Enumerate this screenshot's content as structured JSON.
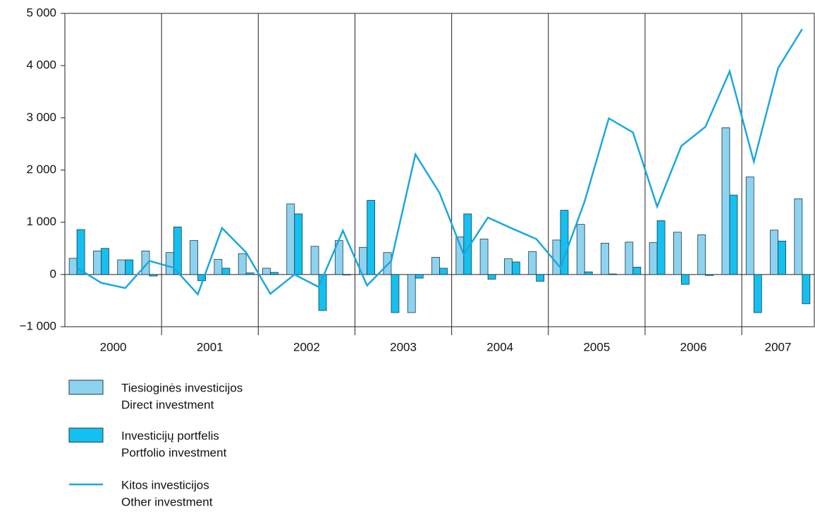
{
  "chart_data": {
    "type": "bar-line",
    "categories": [
      null,
      null,
      null,
      null,
      null,
      null,
      null,
      null,
      null,
      null,
      null,
      null,
      null,
      null,
      null,
      null,
      null,
      null,
      null,
      null,
      null,
      null,
      null,
      null,
      null,
      null,
      null,
      null,
      null,
      null,
      null
    ],
    "groups": [
      "2000",
      "2001",
      "2002",
      "2003",
      "2004",
      "2005",
      "2006",
      "2007"
    ],
    "series": [
      {
        "name": [
          "Tiesioginės investicijos",
          "Direct investment"
        ],
        "kind": "bar",
        "color": "#8dd3f0",
        "values": [
          310,
          450,
          280,
          450,
          420,
          650,
          290,
          400,
          120,
          1350,
          540,
          650,
          520,
          420,
          -730,
          330,
          720,
          680,
          300,
          440,
          660,
          960,
          600,
          620,
          610,
          810,
          760,
          2810,
          1870,
          850,
          1450
        ]
      },
      {
        "name": [
          "Investicijų portfelis",
          "Portfolio investment"
        ],
        "kind": "bar",
        "color": "#14c0ef",
        "values": [
          860,
          500,
          280,
          -30,
          910,
          -120,
          120,
          30,
          40,
          1160,
          -690,
          -10,
          1420,
          -730,
          -70,
          120,
          1160,
          -90,
          240,
          -130,
          1230,
          50,
          10,
          140,
          1030,
          -190,
          -20,
          1520,
          -730,
          640,
          -560
        ]
      },
      {
        "name": [
          "Kitos investicijos",
          "Other investment"
        ],
        "kind": "line",
        "color": "#1aa7e0",
        "values": [
          130,
          -160,
          -260,
          260,
          130,
          -380,
          890,
          420,
          -370,
          0,
          -240,
          840,
          -210,
          260,
          2300,
          1560,
          380,
          1090,
          880,
          680,
          130,
          1400,
          2990,
          2720,
          1300,
          2460,
          2830,
          3890,
          2160,
          3950,
          4700
        ]
      }
    ],
    "ylim": [
      -1000,
      5000
    ],
    "yticks": [
      {
        "value": -1000,
        "label": "−1 000"
      },
      0,
      {
        "value": 1000,
        "label": "1 000"
      },
      {
        "value": 2000,
        "label": "2 000"
      },
      {
        "value": 3000,
        "label": "3 000"
      },
      {
        "value": 4000,
        "label": "4 000"
      },
      {
        "value": 5000,
        "label": "5 000"
      }
    ]
  }
}
